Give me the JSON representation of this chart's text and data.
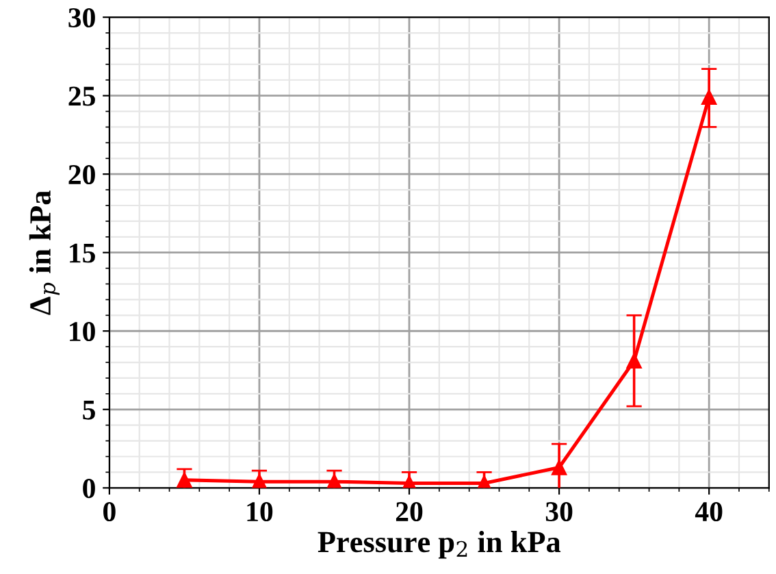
{
  "chart_data": {
    "type": "line",
    "xlabel": "Pressure p$_{2}$ in kPa",
    "ylabel": "Δ$_{p}$ in kPa",
    "x": [
      5,
      10,
      15,
      20,
      25,
      30,
      35,
      40
    ],
    "series": [
      {
        "color": "#ff0000",
        "values": [
          0.5,
          0.4,
          0.4,
          0.3,
          0.3,
          1.3,
          8.1,
          24.9
        ],
        "errors": [
          0.7,
          0.7,
          0.7,
          0.7,
          0.7,
          1.5,
          [
            5.2,
            11.0
          ],
          [
            23.0,
            26.7
          ]
        ]
      }
    ],
    "xlim": [
      0,
      44
    ],
    "ylim": [
      0,
      30
    ],
    "xticks": [
      0,
      10,
      20,
      30,
      40
    ],
    "yticks": [
      0,
      5,
      10,
      15,
      20,
      25,
      30
    ],
    "grid": true,
    "marker": "triangle",
    "line_style": "solid"
  }
}
